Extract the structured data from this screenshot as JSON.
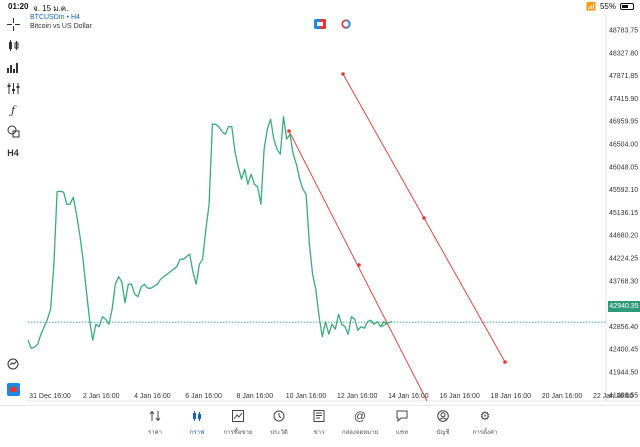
{
  "status_bar": {
    "time": "01:20",
    "date": "จ. 15 ม.ค.",
    "battery": "55%"
  },
  "chart": {
    "symbol_title": "BTCUSDm • H4",
    "symbol_desc": "Bitcoin vs US Dollar",
    "current_price": "42940.35",
    "price_axis": [
      "48783.75",
      "48327.80",
      "47871.85",
      "47415.90",
      "46959.95",
      "46504.00",
      "46048.05",
      "45592.10",
      "45136.15",
      "44680.20",
      "44224.25",
      "43768.30",
      "43312.35",
      "42856.40",
      "42400.45",
      "41944.50",
      "41488.55"
    ],
    "date_axis": [
      "31 Dec 16:00",
      "2 Jan 16:00",
      "4 Jan 16:00",
      "6 Jan 16:00",
      "8 Jan 16:00",
      "10 Jan 16:00",
      "12 Jan 16:00",
      "14 Jan 16:00",
      "16 Jan 16:00",
      "18 Jan 16:00",
      "20 Jan 16:00",
      "22 Jan 16:00"
    ],
    "colors": {
      "line": "#3bab7c",
      "trend": "#e53935",
      "price_line": "#2e9b78"
    },
    "price_series": [
      42580,
      42420,
      42440,
      42500,
      42700,
      42850,
      43000,
      43200,
      44100,
      45550,
      45560,
      45540,
      45300,
      45300,
      45440,
      45100,
      44700,
      44200,
      43600,
      43000,
      42580,
      42900,
      42850,
      43050,
      43000,
      42900,
      43200,
      43700,
      43850,
      43750,
      43330,
      43700,
      43700,
      43500,
      43450,
      43650,
      43700,
      43620,
      43620,
      43660,
      43700,
      43800,
      43850,
      43900,
      43950,
      44000,
      44050,
      44200,
      44200,
      44250,
      44300,
      43950,
      43700,
      44100,
      44200,
      44800,
      45300,
      46900,
      46900,
      46850,
      46750,
      46700,
      46850,
      46850,
      46350,
      46050,
      45800,
      46000,
      45700,
      45900,
      45700,
      45650,
      45300,
      46400,
      46800,
      47000,
      46600,
      46400,
      46300,
      47050,
      46600,
      46700,
      46300,
      46100,
      45800,
      45600,
      45500,
      44500,
      43900,
      43600,
      43050,
      42650,
      42950,
      42700,
      42900,
      42800,
      43100,
      42900,
      42850,
      42700,
      43050,
      43000,
      42780,
      42850,
      42820,
      42950,
      42980,
      42900,
      42950,
      42850,
      42950,
      42900
    ]
  },
  "toolbar": [
    "crosshair-icon",
    "candle-icon",
    "indicator-icon",
    "settings-sliders-icon",
    "function-icon",
    "shapes-icon",
    "timeframe-label",
    "zoom-icon",
    "app-logo-icon"
  ],
  "toolbar_timeframe": "H4",
  "nav": [
    {
      "label": "ราคา",
      "icon": "arrows-icon"
    },
    {
      "label": "กราฟ",
      "icon": "candle-icon",
      "active": true
    },
    {
      "label": "การซื้อขาย",
      "icon": "trade-icon"
    },
    {
      "label": "ประวัติ",
      "icon": "clock-icon"
    },
    {
      "label": "ข่าว",
      "icon": "news-icon"
    },
    {
      "label": "กล่องจดหมาย",
      "icon": "at-icon"
    },
    {
      "label": "แชท",
      "icon": "chat-icon"
    },
    {
      "label": "บัญชี",
      "icon": "account-icon"
    },
    {
      "label": "การตั้งค่า",
      "icon": "gear-icon"
    }
  ]
}
